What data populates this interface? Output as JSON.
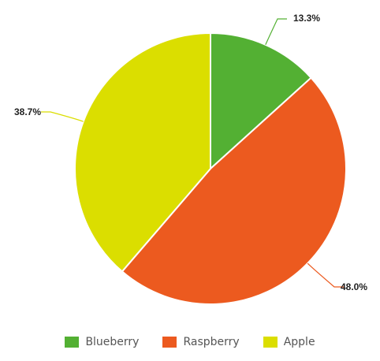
{
  "chart_data": {
    "type": "pie",
    "title": "",
    "slices": [
      {
        "label": "Blueberry",
        "value": 13.3,
        "display": "13.3%",
        "color": "#53b033"
      },
      {
        "label": "Raspberry",
        "value": 48.0,
        "display": "48.0%",
        "color": "#ec5a1f"
      },
      {
        "label": "Apple",
        "value": 38.7,
        "display": "38.7%",
        "color": "#dbde00"
      }
    ],
    "start": "12 o'clock, clockwise",
    "legend_position": "bottom"
  }
}
